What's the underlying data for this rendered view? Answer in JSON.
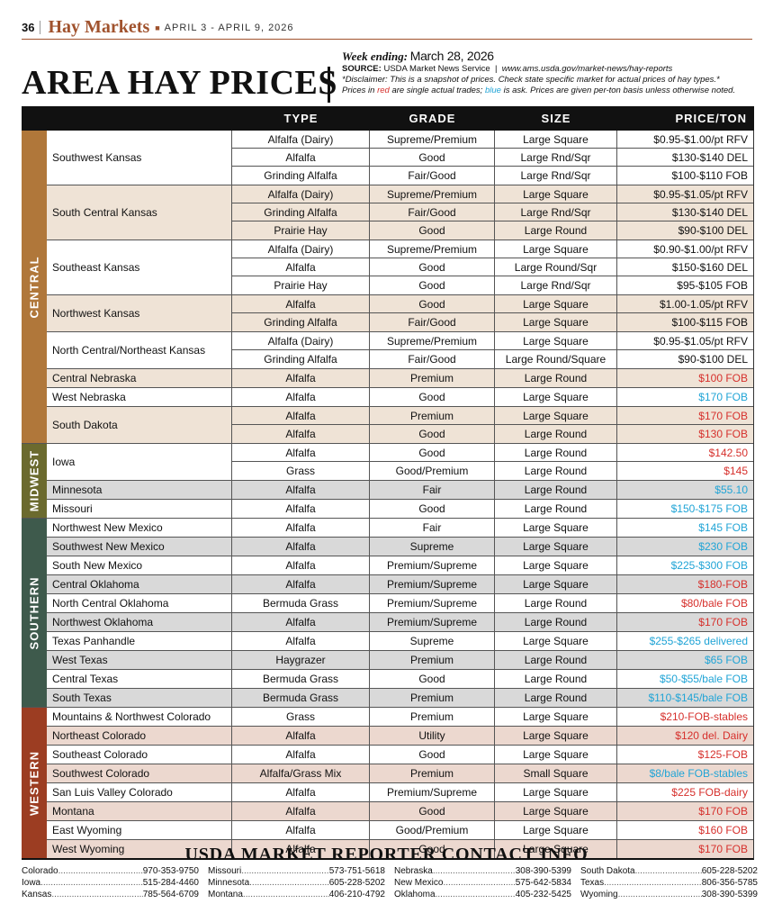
{
  "header": {
    "page_number": "36",
    "publication": "Hay Markets",
    "date_range": "APRIL 3 - APRIL 9, 2026"
  },
  "title": "AREA HAY PRICES",
  "meta": {
    "week_ending_label": "Week ending:",
    "week_ending_date": "March 28, 2026",
    "source_label": "SOURCE:",
    "source_text": "USDA Market News Service",
    "source_url": "www.ams.usda.gov/market-news/hay-reports",
    "disclaimer": "*Disclaimer: This is a snapshot of prices. Check state specific market for actual prices of hay types.*",
    "note_prefix": "Prices in",
    "note_red": "red",
    "note_mid": "are single actual trades;",
    "note_blue": "blue",
    "note_suffix": "is ask. Prices are given per-ton basis unless otherwise noted."
  },
  "colors": {
    "red": "#d6302c",
    "blue": "#20a4d6",
    "central": "#b0773a",
    "midwest": "#6b6a2e",
    "southern": "#3e5a4c",
    "western": "#9c3d22"
  },
  "table": {
    "headers": {
      "type": "TYPE",
      "grade": "GRADE",
      "size": "SIZE",
      "price": "PRICE/TON"
    },
    "sections": [
      {
        "name": "CENTRAL",
        "groups": [
          {
            "region": "Southwest Kansas",
            "rows": [
              {
                "type": "Alfalfa (Dairy)",
                "grade": "Supreme/Premium",
                "size": "Large Square",
                "price": "$0.95-$1.00/pt RFV",
                "color": "black"
              },
              {
                "type": "Alfalfa",
                "grade": "Good",
                "size": "Large Rnd/Sqr",
                "price": "$130-$140 DEL",
                "color": "black"
              },
              {
                "type": "Grinding Alfalfa",
                "grade": "Fair/Good",
                "size": "Large Rnd/Sqr",
                "price": "$100-$110 FOB",
                "color": "black"
              }
            ]
          },
          {
            "region": "South Central Kansas",
            "rows": [
              {
                "type": "Alfalfa (Dairy)",
                "grade": "Supreme/Premium",
                "size": "Large Square",
                "price": "$0.95-$1.05/pt RFV",
                "color": "black"
              },
              {
                "type": "Grinding Alfalfa",
                "grade": "Fair/Good",
                "size": "Large Rnd/Sqr",
                "price": "$130-$140 DEL",
                "color": "black"
              },
              {
                "type": "Prairie Hay",
                "grade": "Good",
                "size": "Large Round",
                "price": "$90-$100 DEL",
                "color": "black"
              }
            ]
          },
          {
            "region": "Southeast Kansas",
            "rows": [
              {
                "type": "Alfalfa (Dairy)",
                "grade": "Supreme/Premium",
                "size": "Large Square",
                "price": "$0.90-$1.00/pt RFV",
                "color": "black"
              },
              {
                "type": "Alfalfa",
                "grade": "Good",
                "size": "Large Round/Sqr",
                "price": "$150-$160 DEL",
                "color": "black"
              },
              {
                "type": "Prairie Hay",
                "grade": "Good",
                "size": "Large Rnd/Sqr",
                "price": "$95-$105 FOB",
                "color": "black"
              }
            ]
          },
          {
            "region": "Northwest Kansas",
            "rows": [
              {
                "type": "Alfalfa",
                "grade": "Good",
                "size": "Large Square",
                "price": "$1.00-1.05/pt RFV",
                "color": "black"
              },
              {
                "type": "Grinding Alfalfa",
                "grade": "Fair/Good",
                "size": "Large Square",
                "price": "$100-$115 FOB",
                "color": "black"
              }
            ]
          },
          {
            "region": "North Central/Northeast Kansas",
            "rows": [
              {
                "type": "Alfalfa (Dairy)",
                "grade": "Supreme/Premium",
                "size": "Large Square",
                "price": "$0.95-$1.05/pt RFV",
                "color": "black"
              },
              {
                "type": "Grinding Alfalfa",
                "grade": "Fair/Good",
                "size": "Large Round/Square",
                "price": "$90-$100 DEL",
                "color": "black"
              }
            ]
          },
          {
            "region": "Central Nebraska",
            "rows": [
              {
                "type": "Alfalfa",
                "grade": "Premium",
                "size": "Large Round",
                "price": "$100 FOB",
                "color": "red"
              }
            ]
          },
          {
            "region": "West Nebraska",
            "rows": [
              {
                "type": "Alfalfa",
                "grade": "Good",
                "size": "Large Square",
                "price": "$170 FOB",
                "color": "blue"
              }
            ]
          },
          {
            "region": "South Dakota",
            "rows": [
              {
                "type": "Alfalfa",
                "grade": "Premium",
                "size": "Large Square",
                "price": "$170 FOB",
                "color": "red"
              },
              {
                "type": "Alfalfa",
                "grade": "Good",
                "size": "Large Round",
                "price": "$130 FOB",
                "color": "red"
              }
            ]
          }
        ]
      },
      {
        "name": "MIDWEST",
        "groups": [
          {
            "region": "Iowa",
            "rows": [
              {
                "type": "Alfalfa",
                "grade": "Good",
                "size": "Large Round",
                "price": "$142.50",
                "color": "red"
              },
              {
                "type": "Grass",
                "grade": "Good/Premium",
                "size": "Large Round",
                "price": "$145",
                "color": "red"
              }
            ]
          },
          {
            "region": "Minnesota",
            "rows": [
              {
                "type": "Alfalfa",
                "grade": "Fair",
                "size": "Large Round",
                "price": "$55.10",
                "color": "blue"
              }
            ]
          },
          {
            "region": "Missouri",
            "rows": [
              {
                "type": "Alfalfa",
                "grade": "Good",
                "size": "Large Round",
                "price": "$150-$175 FOB",
                "color": "blue"
              }
            ]
          }
        ]
      },
      {
        "name": "SOUTHERN",
        "groups": [
          {
            "region": "Northwest New Mexico",
            "rows": [
              {
                "type": "Alfalfa",
                "grade": "Fair",
                "size": "Large Square",
                "price": "$145 FOB",
                "color": "blue"
              }
            ]
          },
          {
            "region": "Southwest New Mexico",
            "rows": [
              {
                "type": "Alfalfa",
                "grade": "Supreme",
                "size": "Large Square",
                "price": "$230 FOB",
                "color": "blue"
              }
            ]
          },
          {
            "region": "South New Mexico",
            "rows": [
              {
                "type": "Alfalfa",
                "grade": "Premium/Supreme",
                "size": "Large Square",
                "price": "$225-$300 FOB",
                "color": "blue"
              }
            ]
          },
          {
            "region": "Central Oklahoma",
            "rows": [
              {
                "type": "Alfalfa",
                "grade": "Premium/Supreme",
                "size": "Large Square",
                "price": "$180-FOB",
                "color": "red"
              }
            ]
          },
          {
            "region": "North Central Oklahoma",
            "rows": [
              {
                "type": "Bermuda Grass",
                "grade": "Premium/Supreme",
                "size": "Large Round",
                "price": "$80/bale FOB",
                "color": "red"
              }
            ]
          },
          {
            "region": "Northwest Oklahoma",
            "rows": [
              {
                "type": "Alfalfa",
                "grade": "Premium/Supreme",
                "size": "Large Round",
                "price": "$170 FOB",
                "color": "red"
              }
            ]
          },
          {
            "region": "Texas Panhandle",
            "rows": [
              {
                "type": "Alfalfa",
                "grade": "Supreme",
                "size": "Large Square",
                "price": "$255-$265 delivered",
                "color": "blue"
              }
            ]
          },
          {
            "region": "West Texas",
            "rows": [
              {
                "type": "Haygrazer",
                "grade": "Premium",
                "size": "Large Round",
                "price": "$65 FOB",
                "color": "blue"
              }
            ]
          },
          {
            "region": "Central Texas",
            "rows": [
              {
                "type": "Bermuda Grass",
                "grade": "Good",
                "size": "Large Round",
                "price": "$50-$55/bale FOB",
                "color": "blue"
              }
            ]
          },
          {
            "region": "South Texas",
            "rows": [
              {
                "type": "Bermuda Grass",
                "grade": "Premium",
                "size": "Large Round",
                "price": "$110-$145/bale FOB",
                "color": "blue"
              }
            ]
          }
        ]
      },
      {
        "name": "WESTERN",
        "groups": [
          {
            "region": "Mountains & Northwest Colorado",
            "rows": [
              {
                "type": "Grass",
                "grade": "Premium",
                "size": "Large Square",
                "price": "$210-FOB-stables",
                "color": "red"
              }
            ]
          },
          {
            "region": "Northeast Colorado",
            "rows": [
              {
                "type": "Alfalfa",
                "grade": "Utility",
                "size": "Large Square",
                "price": "$120 del. Dairy",
                "color": "red"
              }
            ]
          },
          {
            "region": "Southeast Colorado",
            "rows": [
              {
                "type": "Alfalfa",
                "grade": "Good",
                "size": "Large Square",
                "price": "$125-FOB",
                "color": "red"
              }
            ]
          },
          {
            "region": "Southwest Colorado",
            "rows": [
              {
                "type": "Alfalfa/Grass Mix",
                "grade": "Premium",
                "size": "Small Square",
                "price": "$8/bale FOB-stables",
                "color": "blue"
              }
            ]
          },
          {
            "region": "San Luis Valley Colorado",
            "rows": [
              {
                "type": "Alfalfa",
                "grade": "Premium/Supreme",
                "size": "Large Square",
                "price": "$225 FOB-dairy",
                "color": "red"
              }
            ]
          },
          {
            "region": "Montana",
            "rows": [
              {
                "type": "Alfalfa",
                "grade": "Good",
                "size": "Large Square",
                "price": "$170 FOB",
                "color": "red"
              }
            ]
          },
          {
            "region": "East Wyoming",
            "rows": [
              {
                "type": "Alfalfa",
                "grade": "Good/Premium",
                "size": "Large Square",
                "price": "$160 FOB",
                "color": "red"
              }
            ]
          },
          {
            "region": "West Wyoming",
            "rows": [
              {
                "type": "Alfalfa",
                "grade": "Good",
                "size": "Large Square",
                "price": "$170 FOB",
                "color": "red"
              }
            ]
          }
        ]
      }
    ]
  },
  "contacts": {
    "title": "USDA MARKET REPORTER CONTACT INFO",
    "columns": [
      [
        {
          "state": "Colorado",
          "phone": "970-353-9750"
        },
        {
          "state": "Iowa",
          "phone": "515-284-4460"
        },
        {
          "state": "Kansas",
          "phone": "785-564-6709"
        }
      ],
      [
        {
          "state": "Missouri",
          "phone": "573-751-5618"
        },
        {
          "state": "Minnesota",
          "phone": "605-228-5202"
        },
        {
          "state": "Montana",
          "phone": "406-210-4792"
        }
      ],
      [
        {
          "state": "Nebraska",
          "phone": "308-390-5399"
        },
        {
          "state": "New Mexico",
          "phone": "575-642-5834"
        },
        {
          "state": "Oklahoma",
          "phone": "405-232-5425"
        }
      ],
      [
        {
          "state": "South Dakota",
          "phone": "605-228-5202"
        },
        {
          "state": "Texas",
          "phone": "806-356-5785"
        },
        {
          "state": "Wyoming",
          "phone": "308-390-5399"
        }
      ]
    ]
  }
}
